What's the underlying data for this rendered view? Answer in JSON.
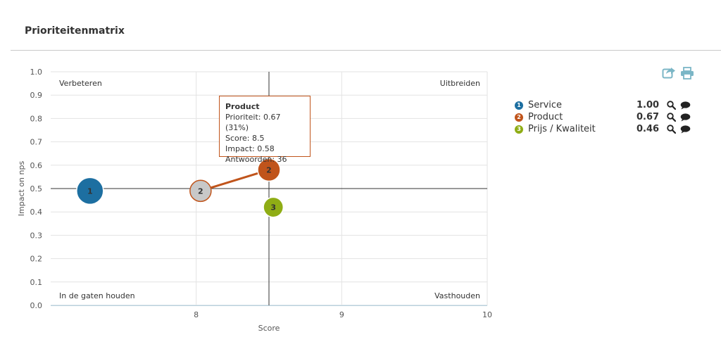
{
  "page": {
    "title": "Prioriteitenmatrix"
  },
  "colors": {
    "service": "#1d6fa1",
    "product": "#c0541b",
    "prijs": "#8fad15",
    "previous": "#c8c8c8",
    "tool_icon": "#7bb6c6"
  },
  "toolbar": {
    "icons": [
      "export-icon",
      "print-icon"
    ]
  },
  "chart_data": {
    "type": "scatter",
    "xlabel": "Score",
    "ylabel": "Impact on nps",
    "xlim": [
      7,
      10
    ],
    "ylim": [
      0,
      1
    ],
    "x_ticks": [
      "8",
      "9",
      "10"
    ],
    "y_ticks": [
      "0.0",
      "0.1",
      "0.2",
      "0.3",
      "0.4",
      "0.5",
      "0.6",
      "0.7",
      "0.8",
      "0.9",
      "1.0"
    ],
    "grid": true,
    "divider_x": 8.5,
    "divider_y": 0.5,
    "quadrants": {
      "top_left": "Verbeteren",
      "top_right": "Uitbreiden",
      "bottom_left": "In de gaten houden",
      "bottom_right": "Vasthouden"
    },
    "points": [
      {
        "label": "1",
        "x": 7.27,
        "y": 0.49,
        "priority": 1.0,
        "color": "#1d6fa1"
      },
      {
        "label": "2",
        "x": 8.5,
        "y": 0.58,
        "priority": 0.67,
        "color": "#c0541b"
      },
      {
        "label": "3",
        "x": 8.53,
        "y": 0.42,
        "priority": 0.46,
        "color": "#8fad15"
      }
    ],
    "previous_point": {
      "label": "2",
      "x": 8.03,
      "y": 0.49,
      "color": "#c8c8c8",
      "border": "#c0541b"
    },
    "tooltip": {
      "title": "Product",
      "lines": [
        "Prioriteit: 0.67 (31%)",
        "Score: 8.5",
        "Impact: 0.58",
        "Antwoorden: 36"
      ]
    }
  },
  "legend": {
    "items": [
      {
        "num": "1",
        "label": "Service",
        "value": "1.00",
        "color": "#1d6fa1"
      },
      {
        "num": "2",
        "label": "Product",
        "value": "0.67",
        "color": "#c0541b"
      },
      {
        "num": "3",
        "label": "Prijs / Kwaliteit",
        "value": "0.46",
        "color": "#8fad15"
      }
    ]
  }
}
